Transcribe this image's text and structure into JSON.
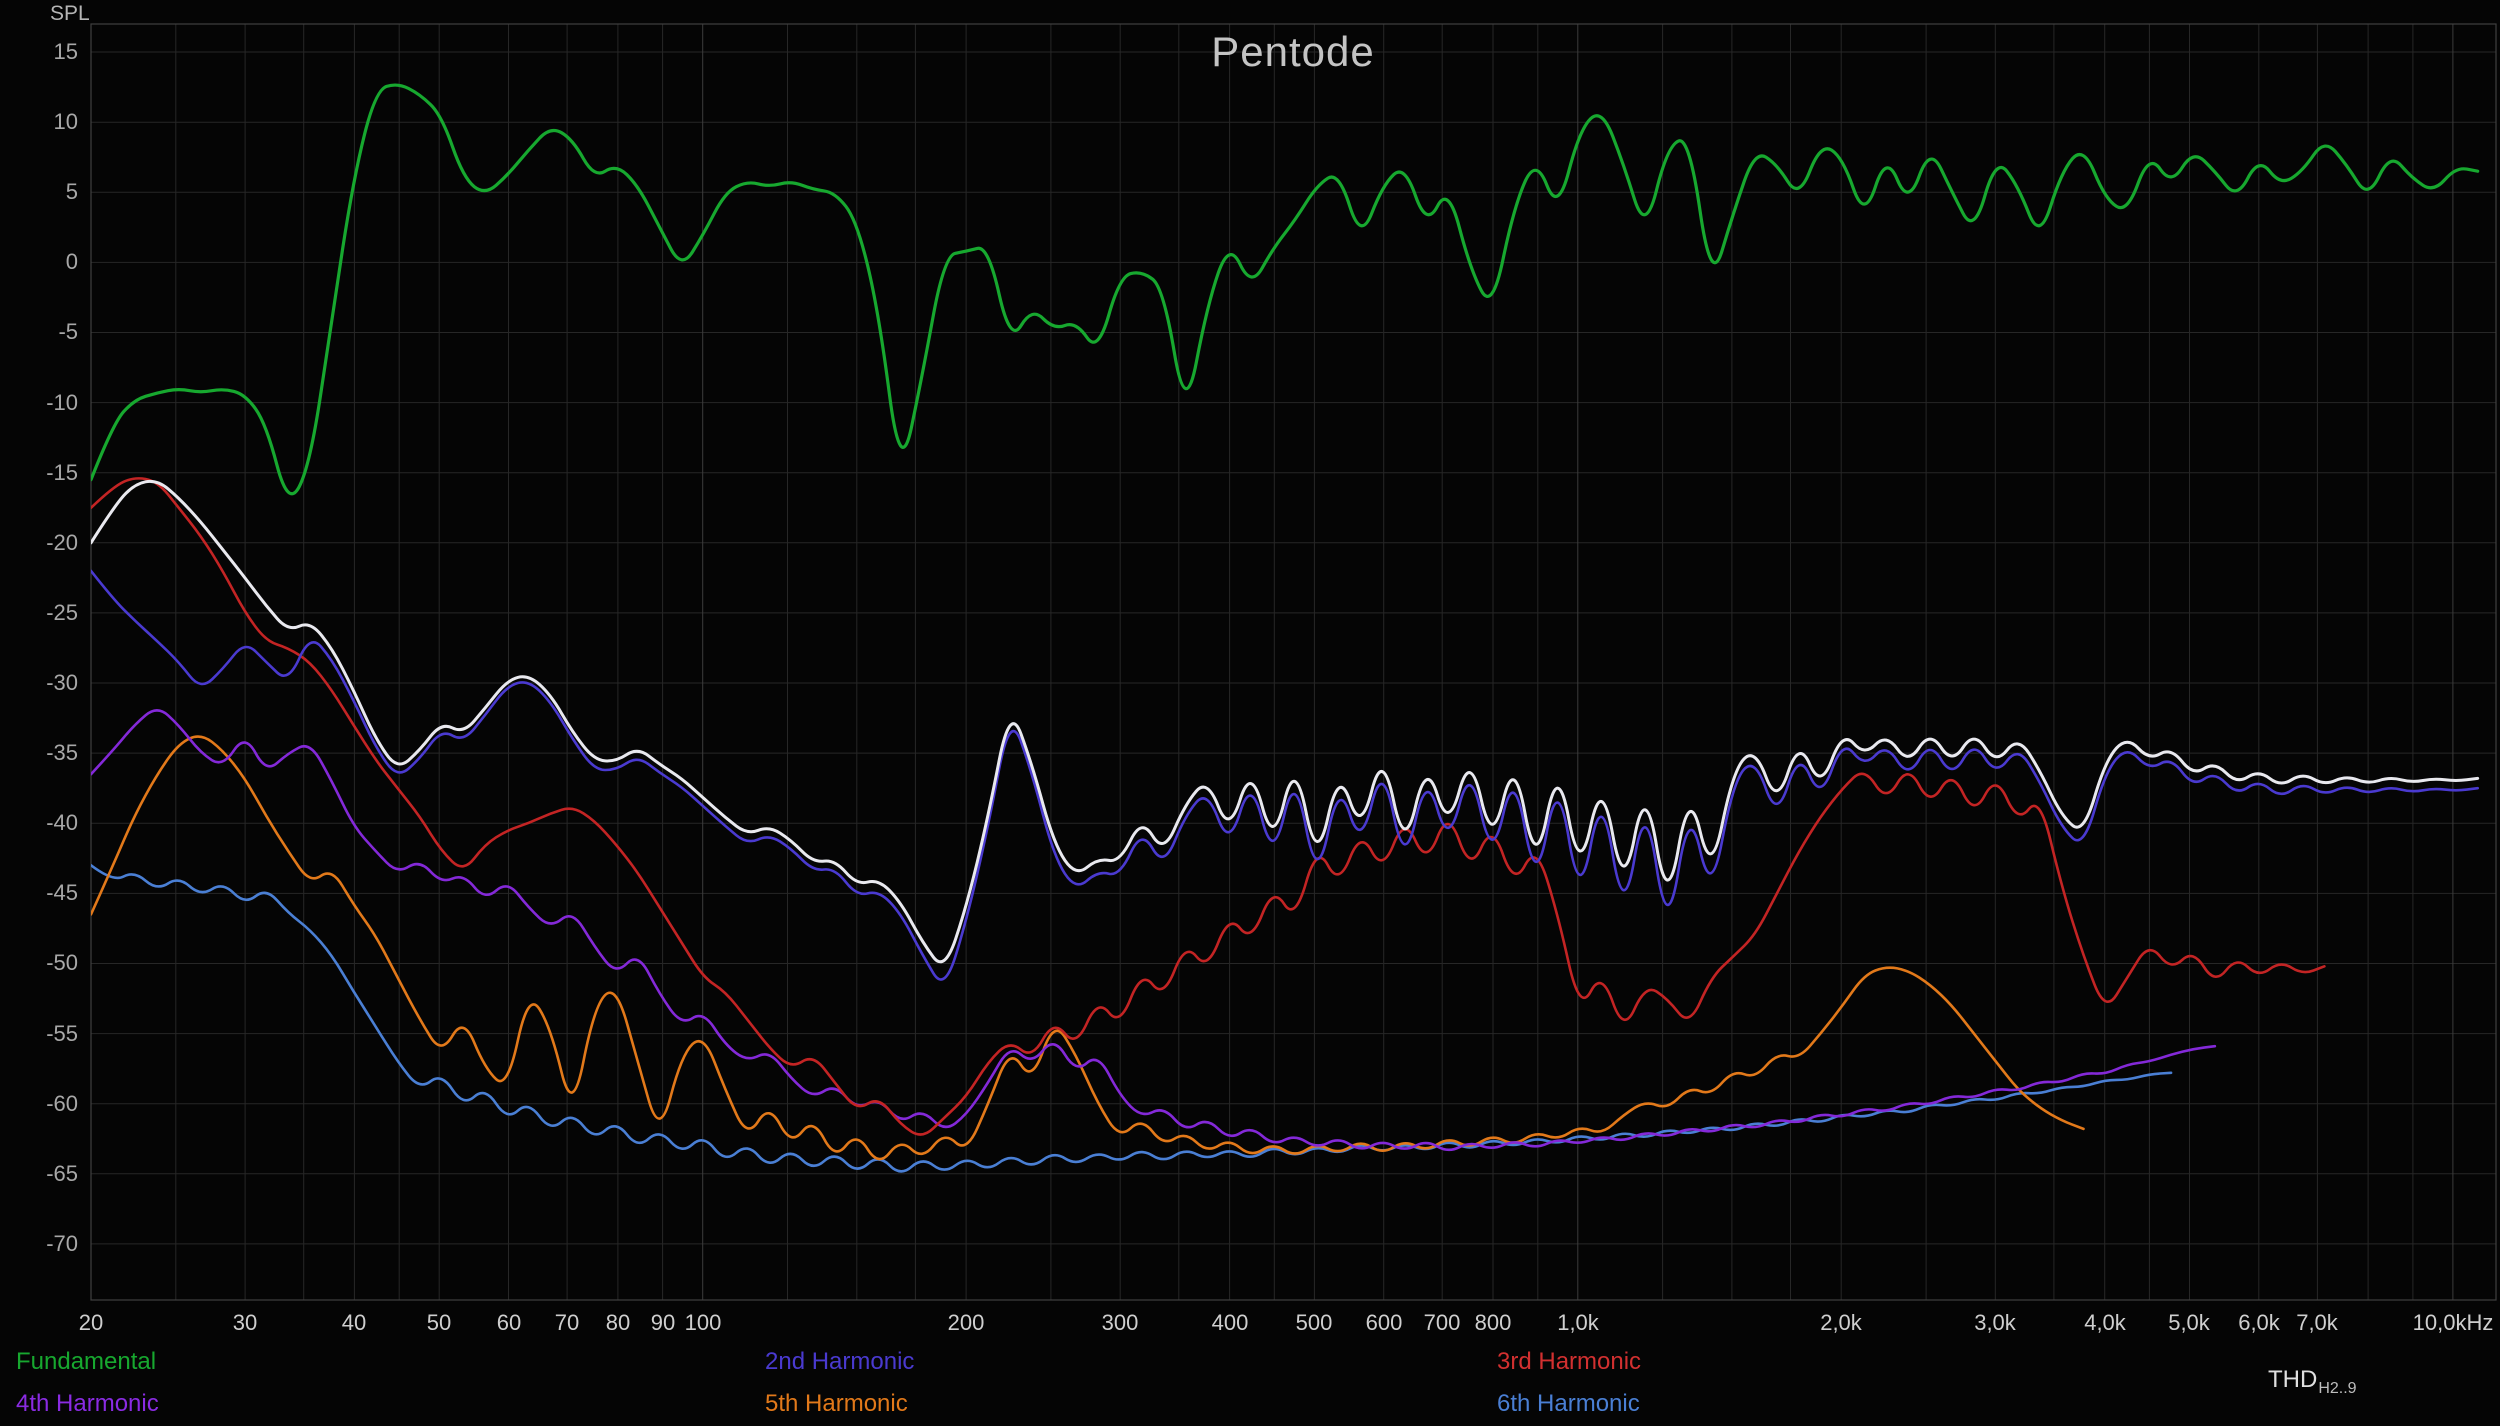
{
  "chart_data": {
    "type": "line",
    "title": "Pentode",
    "ylabel": "SPL",
    "x_scale": "log",
    "x_unit": "Hz",
    "xlim": [
      20,
      11200
    ],
    "ylim": [
      -74,
      17
    ],
    "grid": true,
    "y_ticks": [
      15,
      10,
      5,
      0,
      -5,
      -10,
      -15,
      -20,
      -25,
      -30,
      -35,
      -40,
      -45,
      -50,
      -55,
      -60,
      -65,
      -70
    ],
    "x_ticks": [
      {
        "f": 20,
        "label": "20"
      },
      {
        "f": 30,
        "label": "30"
      },
      {
        "f": 40,
        "label": "40"
      },
      {
        "f": 50,
        "label": "50"
      },
      {
        "f": 60,
        "label": "60"
      },
      {
        "f": 70,
        "label": "70"
      },
      {
        "f": 80,
        "label": "80"
      },
      {
        "f": 90,
        "label": "90"
      },
      {
        "f": 100,
        "label": "100"
      },
      {
        "f": 200,
        "label": "200"
      },
      {
        "f": 300,
        "label": "300"
      },
      {
        "f": 400,
        "label": "400"
      },
      {
        "f": 500,
        "label": "500"
      },
      {
        "f": 600,
        "label": "600"
      },
      {
        "f": 700,
        "label": "700"
      },
      {
        "f": 800,
        "label": "800"
      },
      {
        "f": 1000,
        "label": "1,0k"
      },
      {
        "f": 2000,
        "label": "2,0k"
      },
      {
        "f": 3000,
        "label": "3,0k"
      },
      {
        "f": 4000,
        "label": "4,0k"
      },
      {
        "f": 5000,
        "label": "5,0k"
      },
      {
        "f": 6000,
        "label": "6,0k"
      },
      {
        "f": 7000,
        "label": "7,0k"
      },
      {
        "f": 10000,
        "label": "10,0kHz"
      }
    ],
    "x_gridlines": [
      20,
      25,
      30,
      35,
      40,
      45,
      50,
      60,
      70,
      80,
      90,
      100,
      125,
      150,
      175,
      200,
      250,
      300,
      350,
      400,
      450,
      500,
      600,
      700,
      800,
      900,
      1000,
      1250,
      1500,
      1750,
      2000,
      2500,
      3000,
      3500,
      4000,
      4500,
      5000,
      6000,
      7000,
      8000,
      9000,
      10000
    ],
    "x_major_gridlines": [
      100,
      1000,
      10000
    ],
    "colors": {
      "background": "#050505",
      "grid_minor": "#272727",
      "grid_major": "#3c3c3c",
      "border": "#404040",
      "y_axis_text": "#a8a8a8",
      "x_axis_text": "#cfcfcf",
      "title_text": "#c4c4c4"
    },
    "freqs": [
      20,
      21.2,
      22.4,
      23.8,
      25.2,
      26.7,
      28.3,
      30,
      31.7,
      33.6,
      35.6,
      37.7,
      39.9,
      42.3,
      44.8,
      47.5,
      50.3,
      53.3,
      56.4,
      59.8,
      63.2,
      67,
      71,
      75.2,
      79.6,
      84.3,
      89.3,
      94.6,
      100.2,
      106.1,
      112.5,
      119.1,
      126.2,
      133.7,
      141.6,
      150,
      158.9,
      168.3,
      178.3,
      188.9,
      200.1,
      212,
      224.6,
      237.9,
      252,
      267,
      282.8,
      299.6,
      317.4,
      336.2,
      356.2,
      377.3,
      399.7,
      423.4,
      448.6,
      475.2,
      503.4,
      533.2,
      564.9,
      598.4,
      633.9,
      671.5,
      711.3,
      753.6,
      798.3,
      845.6,
      895.8,
      948.9,
      1005,
      1065,
      1128,
      1195,
      1266,
      1341,
      1420,
      1505,
      1594,
      1689,
      1789,
      1895,
      2007,
      2126,
      2252,
      2386,
      2527,
      2677,
      2836,
      3004,
      3183,
      3371,
      3571,
      3783,
      4008,
      4245,
      4497,
      4764,
      5047,
      5346,
      5663,
      5999,
      6355,
      6732,
      7131,
      7554,
      8002,
      8477,
      8979,
      9512,
      10076,
      10674
    ],
    "series": [
      {
        "name": "6th Harmonic",
        "color": "#4a7fd4",
        "width": 2.6,
        "values": [
          -43,
          -44.2,
          -43.4,
          -44.8,
          -43.8,
          -45.2,
          -44.2,
          -45.8,
          -44.6,
          -46.4,
          -47.6,
          -49.4,
          -52,
          -54.5,
          -57,
          -59,
          -57.8,
          -60.2,
          -58.8,
          -61.2,
          -59.8,
          -62,
          -60.6,
          -62.6,
          -61.2,
          -63.2,
          -61.8,
          -63.6,
          -62.2,
          -64.2,
          -62.8,
          -64.6,
          -63.2,
          -64.8,
          -63.4,
          -65,
          -63.6,
          -65.2,
          -63.8,
          -65,
          -63.8,
          -64.8,
          -63.6,
          -64.6,
          -63.4,
          -64.4,
          -63.4,
          -64.2,
          -63.2,
          -64.2,
          -63.2,
          -64,
          -63.2,
          -64,
          -63,
          -63.8,
          -63,
          -63.6,
          -62.8,
          -63.5,
          -62.8,
          -63.4,
          -62.6,
          -63.3,
          -62.5,
          -63.1,
          -62.4,
          -62.9,
          -62.2,
          -62.7,
          -62,
          -62.5,
          -61.8,
          -62.2,
          -61.6,
          -62,
          -61.3,
          -61.7,
          -61,
          -61.4,
          -60.7,
          -61,
          -60.4,
          -60.7,
          -60,
          -60.2,
          -59.6,
          -59.8,
          -59.2,
          -59.3,
          -58.8,
          -58.8,
          -58.3,
          -58.3,
          -57.9,
          -57.8,
          null,
          null,
          null,
          null,
          null,
          null,
          null,
          null,
          null,
          null,
          null,
          null,
          null,
          null
        ]
      },
      {
        "name": "5th Harmonic",
        "color": "#e2791a",
        "width": 2.6,
        "values": [
          -46.5,
          -43,
          -39.5,
          -36.5,
          -34.3,
          -33.6,
          -34.8,
          -36.8,
          -39.5,
          -42,
          -44.3,
          -43.2,
          -45.8,
          -48,
          -51,
          -54,
          -56.5,
          -53.8,
          -57.5,
          -59,
          -52,
          -54.5,
          -61,
          -53,
          -51.5,
          -57,
          -62.5,
          -56.5,
          -55,
          -59,
          -62.5,
          -60,
          -63,
          -61,
          -64,
          -62,
          -64.5,
          -62.5,
          -64,
          -62,
          -63.5,
          -60,
          -56,
          -58.5,
          -54,
          -56.5,
          -60,
          -62.5,
          -61,
          -63,
          -62,
          -63.5,
          -62.5,
          -63.8,
          -62.8,
          -63.8,
          -62.8,
          -63.6,
          -62.6,
          -63.6,
          -62.6,
          -63.4,
          -62.4,
          -63.2,
          -62.2,
          -63,
          -62,
          -62.6,
          -61.6,
          -62.2,
          -60.8,
          -59.8,
          -60.4,
          -58.8,
          -59.4,
          -57.6,
          -58.2,
          -56.4,
          -56.8,
          -55,
          -53,
          -50.8,
          -50.2,
          -50.5,
          -51.5,
          -53,
          -55,
          -57,
          -59,
          -60.3,
          -61.2,
          -61.8,
          null,
          null,
          null,
          null,
          null,
          null,
          null,
          null,
          null,
          null,
          null,
          null,
          null,
          null,
          null,
          null,
          null,
          null
        ]
      },
      {
        "name": "4th Harmonic",
        "color": "#8429d8",
        "width": 2.6,
        "values": [
          -36.5,
          -34.8,
          -33,
          -31.6,
          -33,
          -35,
          -36,
          -33.6,
          -36.4,
          -35,
          -34.2,
          -37,
          -40.2,
          -42,
          -43.6,
          -42.6,
          -44.3,
          -43.6,
          -45.5,
          -44.1,
          -46,
          -47.5,
          -46.2,
          -48.8,
          -50.8,
          -49.2,
          -52.2,
          -54.4,
          -53.4,
          -55.8,
          -57,
          -56.2,
          -58.2,
          -59.6,
          -58.6,
          -60.4,
          -59.6,
          -61.4,
          -60.4,
          -62,
          -60.8,
          -58.5,
          -55.8,
          -57.2,
          -55.2,
          -57.8,
          -56.4,
          -59.4,
          -61,
          -60.2,
          -62,
          -61,
          -62.6,
          -61.6,
          -63,
          -62.2,
          -63.2,
          -62.4,
          -63.4,
          -62.6,
          -63.4,
          -62.6,
          -63.5,
          -62.7,
          -63.3,
          -62.6,
          -63.2,
          -62.5,
          -62.9,
          -62.3,
          -62.7,
          -62,
          -62.4,
          -61.7,
          -62.1,
          -61.4,
          -61.8,
          -61.1,
          -61.4,
          -60.7,
          -61,
          -60.3,
          -60.6,
          -59.9,
          -60.1,
          -59.4,
          -59.6,
          -58.9,
          -59.1,
          -58.4,
          -58.5,
          -57.8,
          -57.9,
          -57.2,
          -57,
          -56.5,
          -56.1,
          -55.9,
          null,
          null,
          null,
          null,
          null,
          null,
          null,
          null,
          null,
          null,
          null,
          null
        ]
      },
      {
        "name": "3rd Harmonic",
        "color": "#c32424",
        "width": 2.6,
        "values": [
          -17.5,
          -16,
          -15.3,
          -15.6,
          -17.5,
          -19.5,
          -22,
          -25,
          -27,
          -27.5,
          -28.5,
          -30.5,
          -33,
          -35.5,
          -37.5,
          -39.5,
          -42,
          -43.5,
          -41.5,
          -40.5,
          -40,
          -39.3,
          -38.8,
          -39.8,
          -41.5,
          -43.5,
          -46,
          -48.5,
          -51,
          -52,
          -54,
          -56,
          -57.5,
          -56.5,
          -58.5,
          -60.5,
          -59.5,
          -61.5,
          -62.5,
          -61,
          -59.5,
          -57,
          -55.5,
          -56.8,
          -54,
          -56,
          -52.5,
          -54.5,
          -50.5,
          -52.5,
          -48.5,
          -50.5,
          -46.5,
          -48.5,
          -44.5,
          -47,
          -41.5,
          -44.5,
          -40.5,
          -43.5,
          -39.5,
          -43,
          -39,
          -43.5,
          -40,
          -44.5,
          -41.5,
          -46.5,
          -53.5,
          -50.5,
          -55,
          -51.5,
          -52.5,
          -54.5,
          -51,
          -49.5,
          -48,
          -45,
          -42,
          -39.5,
          -37.5,
          -36,
          -38.5,
          -35.8,
          -38.8,
          -36.2,
          -39.5,
          -36.5,
          -40,
          -38,
          -44.5,
          -49.5,
          -53.5,
          -51,
          -48.5,
          -50.5,
          -49,
          -51.5,
          -49.5,
          -51,
          -49.8,
          -50.8,
          -50.2,
          null,
          null,
          null,
          null,
          null,
          null,
          null
        ]
      },
      {
        "name": "2nd Harmonic",
        "color": "#4a3ad0",
        "width": 2.6,
        "values": [
          -22,
          -24,
          -25.5,
          -27,
          -28.5,
          -30.5,
          -29,
          -27,
          -28.5,
          -30,
          -26.5,
          -28.3,
          -31.2,
          -34.6,
          -36.8,
          -35.4,
          -33.3,
          -34.2,
          -32.3,
          -30.2,
          -29.8,
          -31.3,
          -34,
          -36.2,
          -36.2,
          -35.2,
          -36.4,
          -37.4,
          -38.8,
          -40.2,
          -41.5,
          -40.8,
          -41.8,
          -43.4,
          -43.2,
          -45.2,
          -44.8,
          -46.4,
          -49.4,
          -52,
          -47,
          -40.2,
          -32,
          -36.4,
          -42.4,
          -44.8,
          -43.4,
          -43.8,
          -40.4,
          -43.2,
          -39.4,
          -37.6,
          -41.8,
          -36.6,
          -42.9,
          -36,
          -44.6,
          -36.8,
          -41.9,
          -35.4,
          -43.4,
          -36.2,
          -41.8,
          -35.6,
          -43,
          -35.8,
          -45,
          -36.2,
          -46,
          -37.2,
          -47.2,
          -37.8,
          -48.4,
          -38.4,
          -45.5,
          -37,
          -35.3,
          -39.8,
          -34.8,
          -38.4,
          -34,
          -36,
          -34.3,
          -36.8,
          -34.1,
          -36.8,
          -34.1,
          -36.6,
          -34.5,
          -37,
          -40.3,
          -41.8,
          -36.3,
          -34.5,
          -36.2,
          -35.3,
          -37.4,
          -36.3,
          -38,
          -36.9,
          -38.2,
          -37.1,
          -38,
          -37.3,
          -37.9,
          -37.4,
          -37.8,
          -37.5,
          -37.7,
          -37.5
        ]
      },
      {
        "name": "THD",
        "color": "#e9e9ef",
        "width": 3,
        "values": [
          -20,
          -17.5,
          -15.8,
          -15.5,
          -16.8,
          -18.5,
          -20.5,
          -22.5,
          -24.5,
          -26.3,
          -25.6,
          -27.5,
          -30.5,
          -34,
          -36.2,
          -34.8,
          -32.8,
          -33.6,
          -31.8,
          -29.8,
          -29.4,
          -30.8,
          -33.5,
          -35.5,
          -35.6,
          -34.6,
          -35.8,
          -36.8,
          -38.2,
          -39.6,
          -40.8,
          -40.2,
          -41.2,
          -42.8,
          -42.6,
          -44.4,
          -44,
          -45.6,
          -48.5,
          -50.6,
          -46,
          -39.5,
          -31.5,
          -35.8,
          -41.5,
          -43.8,
          -42.5,
          -42.8,
          -39.6,
          -42.2,
          -38.6,
          -36.8,
          -40.8,
          -35.8,
          -41.8,
          -35.2,
          -43.2,
          -36,
          -40.8,
          -34.6,
          -42.2,
          -35.4,
          -40.6,
          -34.8,
          -41.8,
          -35,
          -43.6,
          -35.4,
          -44,
          -36.4,
          -45.2,
          -36.8,
          -46.4,
          -37.2,
          -44,
          -36.2,
          -34.6,
          -38.8,
          -34,
          -37.6,
          -33.4,
          -35.2,
          -33.6,
          -35.8,
          -33.4,
          -35.8,
          -33.4,
          -35.8,
          -33.8,
          -36.2,
          -39.5,
          -40.8,
          -35.5,
          -33.8,
          -35.5,
          -34.6,
          -36.6,
          -35.6,
          -37.2,
          -36.2,
          -37.4,
          -36.4,
          -37.3,
          -36.6,
          -37.2,
          -36.7,
          -37.1,
          -36.8,
          -37,
          -36.8
        ]
      },
      {
        "name": "Fundamental",
        "color": "#17a82f",
        "width": 3.2,
        "values": [
          -15.5,
          -11.5,
          -9.8,
          -9.3,
          -9,
          -9.3,
          -9,
          -9.4,
          -11.5,
          -17.5,
          -14.5,
          -4,
          6,
          12.3,
          12.8,
          12,
          10.5,
          6,
          4.8,
          6.2,
          8,
          9.7,
          8.8,
          6,
          7,
          5.5,
          2.5,
          -0.5,
          2,
          5,
          5.8,
          5.4,
          5.8,
          5.2,
          5,
          3,
          -3.5,
          -15.5,
          -8,
          0.5,
          0.8,
          1.2,
          -5.8,
          -3.2,
          -4.8,
          -4.2,
          -6.5,
          -1,
          -0.6,
          -1.8,
          -11.2,
          -3,
          1.5,
          -1.8,
          1,
          3,
          5.5,
          6.5,
          1.5,
          5.5,
          7,
          2.5,
          5.5,
          -0.5,
          -3.5,
          4,
          7.5,
          3.5,
          9.5,
          11,
          7,
          2,
          8.3,
          9,
          -1.8,
          3.5,
          8,
          7,
          4.5,
          8.5,
          7.5,
          3,
          7.8,
          4,
          8.3,
          5,
          2,
          7.5,
          5.5,
          1.5,
          6.5,
          8.3,
          4.5,
          3.5,
          7.8,
          5.5,
          8,
          6.5,
          4.5,
          7.5,
          5.5,
          6.5,
          8.8,
          7,
          4.5,
          7.8,
          6,
          5,
          6.8,
          6.5
        ]
      }
    ]
  },
  "legend": {
    "row1": [
      {
        "label": "Fundamental",
        "color": "#17a82f"
      },
      {
        "label": "2nd Harmonic",
        "color": "#4a3ad0"
      },
      {
        "label": "3rd Harmonic",
        "color": "#d23030"
      }
    ],
    "row2": [
      {
        "label": "4th Harmonic",
        "color": "#8a2be2"
      },
      {
        "label": "5th Harmonic",
        "color": "#e2791a"
      },
      {
        "label": "6th Harmonic",
        "color": "#4a7fd4"
      }
    ],
    "thd": {
      "label": "THD",
      "subscript": "H2..9",
      "color": "#e0e0e0"
    }
  }
}
